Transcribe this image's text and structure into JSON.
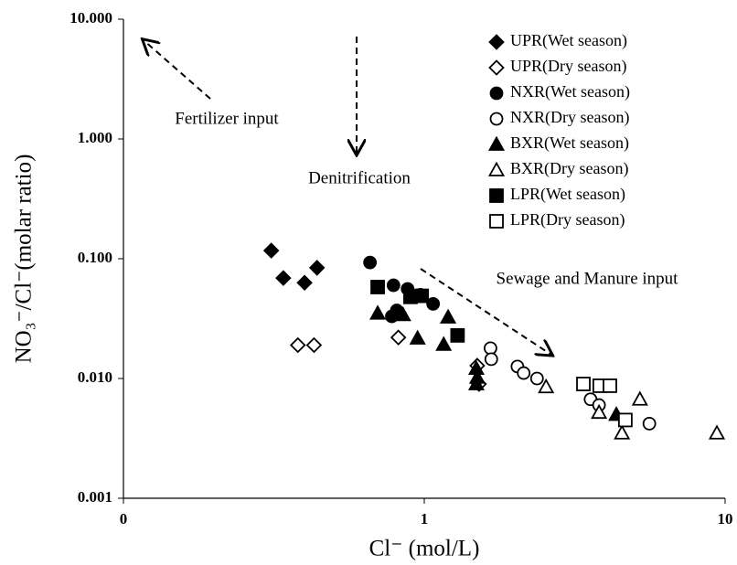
{
  "chart_data": {
    "type": "scatter",
    "xlabel": "Cl⁻ (mol/L)",
    "ylabel": "NO₃⁻/Cl⁻(molar ratio)",
    "xscale": "log",
    "yscale": "log",
    "xlim": [
      0.1,
      10
    ],
    "ylim": [
      0.001,
      10
    ],
    "xticks": [
      {
        "value": 0.1,
        "label": "0"
      },
      1,
      10
    ],
    "yticks": [
      0.001,
      {
        "value": 0.01,
        "label": "0.010"
      },
      {
        "value": 0.1,
        "label": "0.100"
      },
      {
        "value": 1,
        "label": "1.000"
      },
      {
        "value": 10,
        "label": "10.000"
      }
    ],
    "legend": "upper right",
    "annotations": [
      "Fertilizer input",
      "Denitrification",
      "Sewage and Manure input"
    ],
    "series": [
      {
        "name": "UPR(Wet season)",
        "color": "#000000",
        "marker": "diamond",
        "filled": true,
        "x": [
          0.31,
          0.34,
          0.4,
          0.44
        ],
        "y": [
          0.117,
          0.069,
          0.063,
          0.084
        ]
      },
      {
        "name": "UPR(Dry season)",
        "color": "#000000",
        "marker": "diamond",
        "filled": false,
        "x": [
          0.38,
          0.43,
          0.82,
          1.5,
          1.52
        ],
        "y": [
          0.019,
          0.019,
          0.022,
          0.0128,
          0.009
        ]
      },
      {
        "name": "NXR(Wet season)",
        "color": "#000000",
        "marker": "circle",
        "filled": true,
        "x": [
          0.66,
          0.79,
          0.88,
          0.97,
          1.07,
          0.78,
          0.81
        ],
        "y": [
          0.093,
          0.06,
          0.056,
          0.05,
          0.042,
          0.033,
          0.037
        ]
      },
      {
        "name": "NXR(Dry season)",
        "color": "#000000",
        "marker": "circle",
        "filled": false,
        "x": [
          1.66,
          1.67,
          2.04,
          2.14,
          2.37,
          3.57,
          3.81,
          5.6
        ],
        "y": [
          0.0179,
          0.0145,
          0.0126,
          0.0111,
          0.01,
          0.0067,
          0.006,
          0.0042
        ]
      },
      {
        "name": "BXR(Wet season)",
        "color": "#000000",
        "marker": "triangle",
        "filled": true,
        "x": [
          0.7,
          0.85,
          0.95,
          1.16,
          1.2,
          1.49,
          1.49,
          1.5,
          4.35
        ],
        "y": [
          0.035,
          0.034,
          0.0217,
          0.0192,
          0.0325,
          0.0121,
          0.009,
          0.0102,
          0.005
        ]
      },
      {
        "name": "BXR(Dry season)",
        "color": "#000000",
        "marker": "triangle",
        "filled": false,
        "x": [
          2.54,
          3.81,
          4.54,
          5.21,
          9.39
        ],
        "y": [
          0.0085,
          0.0052,
          0.0035,
          0.0067,
          0.0035
        ]
      },
      {
        "name": "LPR(Wet season)",
        "color": "#000000",
        "marker": "square",
        "filled": true,
        "x": [
          0.7,
          0.9,
          0.98,
          1.29
        ],
        "y": [
          0.058,
          0.048,
          0.049,
          0.0229
        ]
      },
      {
        "name": "LPR(Dry season)",
        "color": "#000000",
        "marker": "square",
        "filled": false,
        "x": [
          3.38,
          3.83,
          4.14,
          4.66
        ],
        "y": [
          0.009,
          0.0087,
          0.0087,
          0.0045
        ]
      }
    ]
  }
}
